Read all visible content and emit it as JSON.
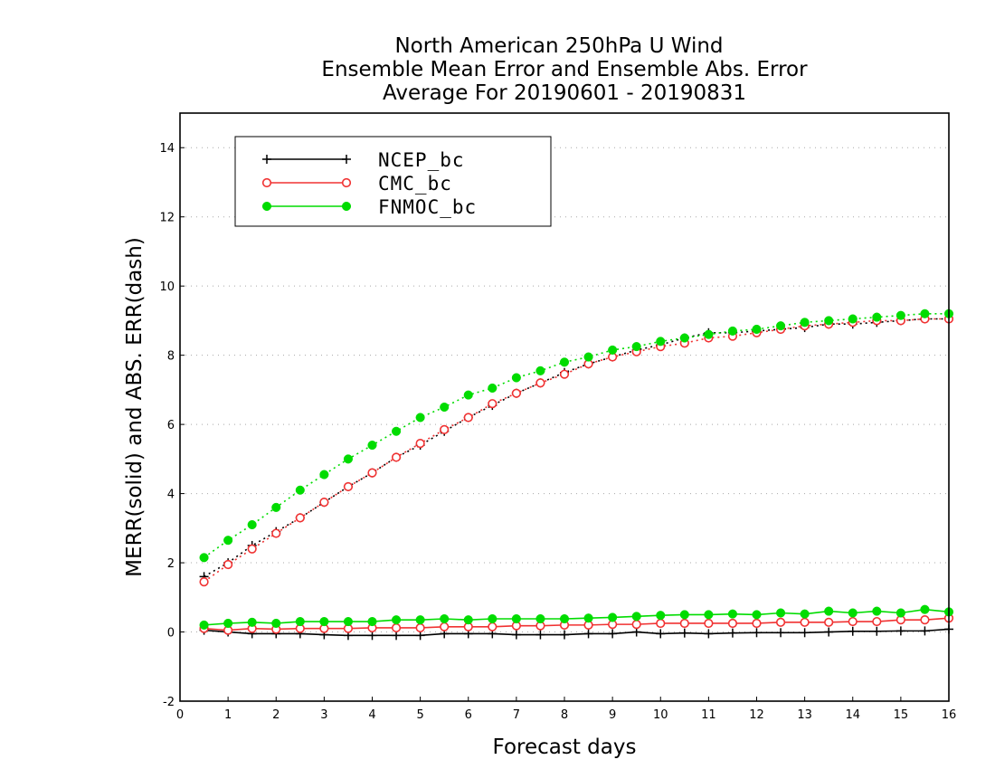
{
  "chart_data": {
    "type": "line",
    "title": [
      "North American 250hPa U Wind",
      "Ensemble Mean Error and Ensemble Abs. Error",
      "Average For 20190601 - 20190831"
    ],
    "xlabel": "Forecast days",
    "ylabel": "MERR(solid) and ABS. ERR(dash)",
    "xlim": [
      0,
      16
    ],
    "ylim": [
      -2,
      15
    ],
    "xticks": [
      0,
      1,
      2,
      3,
      4,
      5,
      6,
      7,
      8,
      9,
      10,
      11,
      12,
      13,
      14,
      15,
      16
    ],
    "yticks": [
      -2,
      0,
      2,
      4,
      6,
      8,
      10,
      12,
      14
    ],
    "grid": "horizontal dotted",
    "legend_position": "top-left",
    "x": [
      0.5,
      1,
      1.5,
      2,
      2.5,
      3,
      3.5,
      4,
      4.5,
      5,
      5.5,
      6,
      6.5,
      7,
      7.5,
      8,
      8.5,
      9,
      9.5,
      10,
      10.5,
      11,
      11.5,
      12,
      12.5,
      13,
      13.5,
      14,
      14.5,
      15,
      15.5,
      16
    ],
    "series": [
      {
        "name": "NCEP_bc",
        "color": "#000000",
        "marker": "plus",
        "mean_error": [
          0.05,
          0.0,
          -0.05,
          -0.05,
          -0.05,
          -0.08,
          -0.1,
          -0.1,
          -0.1,
          -0.1,
          -0.05,
          -0.05,
          -0.05,
          -0.08,
          -0.08,
          -0.08,
          -0.05,
          -0.05,
          0.0,
          -0.05,
          -0.03,
          -0.05,
          -0.03,
          -0.02,
          -0.02,
          -0.02,
          0.0,
          0.02,
          0.02,
          0.03,
          0.03,
          0.08
        ],
        "abs_error": [
          1.6,
          2.0,
          2.5,
          2.9,
          3.3,
          3.75,
          4.2,
          4.6,
          5.05,
          5.4,
          5.8,
          6.2,
          6.55,
          6.9,
          7.2,
          7.5,
          7.75,
          7.95,
          8.15,
          8.3,
          8.5,
          8.65,
          8.65,
          8.7,
          8.75,
          8.8,
          8.9,
          8.9,
          8.95,
          9.0,
          9.05,
          9.05
        ]
      },
      {
        "name": "CMC_bc",
        "color": "#f03232",
        "marker": "open-circle",
        "mean_error": [
          0.1,
          0.05,
          0.1,
          0.08,
          0.1,
          0.1,
          0.1,
          0.12,
          0.12,
          0.12,
          0.15,
          0.15,
          0.15,
          0.18,
          0.18,
          0.2,
          0.2,
          0.22,
          0.22,
          0.25,
          0.25,
          0.25,
          0.25,
          0.25,
          0.28,
          0.28,
          0.28,
          0.3,
          0.3,
          0.35,
          0.35,
          0.4
        ],
        "abs_error": [
          1.45,
          1.95,
          2.4,
          2.85,
          3.3,
          3.75,
          4.2,
          4.6,
          5.05,
          5.45,
          5.85,
          6.2,
          6.6,
          6.9,
          7.2,
          7.45,
          7.75,
          7.95,
          8.1,
          8.25,
          8.35,
          8.5,
          8.55,
          8.65,
          8.75,
          8.85,
          8.9,
          8.95,
          9.0,
          9.0,
          9.05,
          9.05
        ]
      },
      {
        "name": "FNMOC_bc",
        "color": "#00dc00",
        "marker": "filled-circle",
        "mean_error": [
          0.2,
          0.25,
          0.28,
          0.25,
          0.3,
          0.3,
          0.3,
          0.3,
          0.35,
          0.35,
          0.38,
          0.35,
          0.38,
          0.38,
          0.38,
          0.38,
          0.4,
          0.42,
          0.45,
          0.48,
          0.5,
          0.5,
          0.52,
          0.5,
          0.55,
          0.52,
          0.6,
          0.55,
          0.6,
          0.55,
          0.65,
          0.58
        ],
        "abs_error": [
          2.15,
          2.65,
          3.1,
          3.6,
          4.1,
          4.55,
          5.0,
          5.4,
          5.8,
          6.2,
          6.5,
          6.85,
          7.05,
          7.35,
          7.55,
          7.8,
          7.95,
          8.15,
          8.25,
          8.4,
          8.5,
          8.6,
          8.7,
          8.75,
          8.85,
          8.95,
          9.0,
          9.05,
          9.1,
          9.15,
          9.2,
          9.2
        ]
      }
    ]
  }
}
